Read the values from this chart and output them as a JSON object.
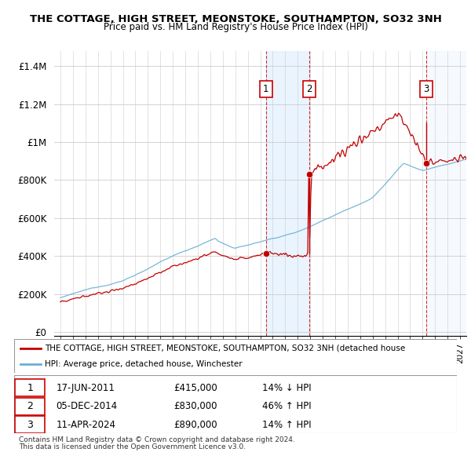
{
  "title1": "THE COTTAGE, HIGH STREET, MEONSTOKE, SOUTHAMPTON, SO32 3NH",
  "title2": "Price paid vs. HM Land Registry's House Price Index (HPI)",
  "hpi_color": "#6baed6",
  "price_color": "#c00000",
  "shading_color": "#ddeeff",
  "yticks": [
    0,
    200000,
    400000,
    600000,
    800000,
    1000000,
    1200000,
    1400000
  ],
  "ytick_labels": [
    "£0",
    "£200K",
    "£400K",
    "£600K",
    "£800K",
    "£1M",
    "£1.2M",
    "£1.4M"
  ],
  "xlim_start": 1994.5,
  "xlim_end": 2027.5,
  "ylim_min": -20000,
  "ylim_max": 1480000,
  "legend_line1": "THE COTTAGE, HIGH STREET, MEONSTOKE, SOUTHAMPTON, SO32 3NH (detached house",
  "legend_line2": "HPI: Average price, detached house, Winchester",
  "sale1_date": "17-JUN-2011",
  "sale1_price": 415000,
  "sale1_hpi": "14% ↓ HPI",
  "sale1_year": 2011.46,
  "sale2_date": "05-DEC-2014",
  "sale2_price": 830000,
  "sale2_hpi": "46% ↑ HPI",
  "sale2_year": 2014.92,
  "sale3_date": "11-APR-2024",
  "sale3_price": 890000,
  "sale3_hpi": "14% ↑ HPI",
  "sale3_year": 2024.28,
  "footnote1": "Contains HM Land Registry data © Crown copyright and database right 2024.",
  "footnote2": "This data is licensed under the Open Government Licence v3.0."
}
